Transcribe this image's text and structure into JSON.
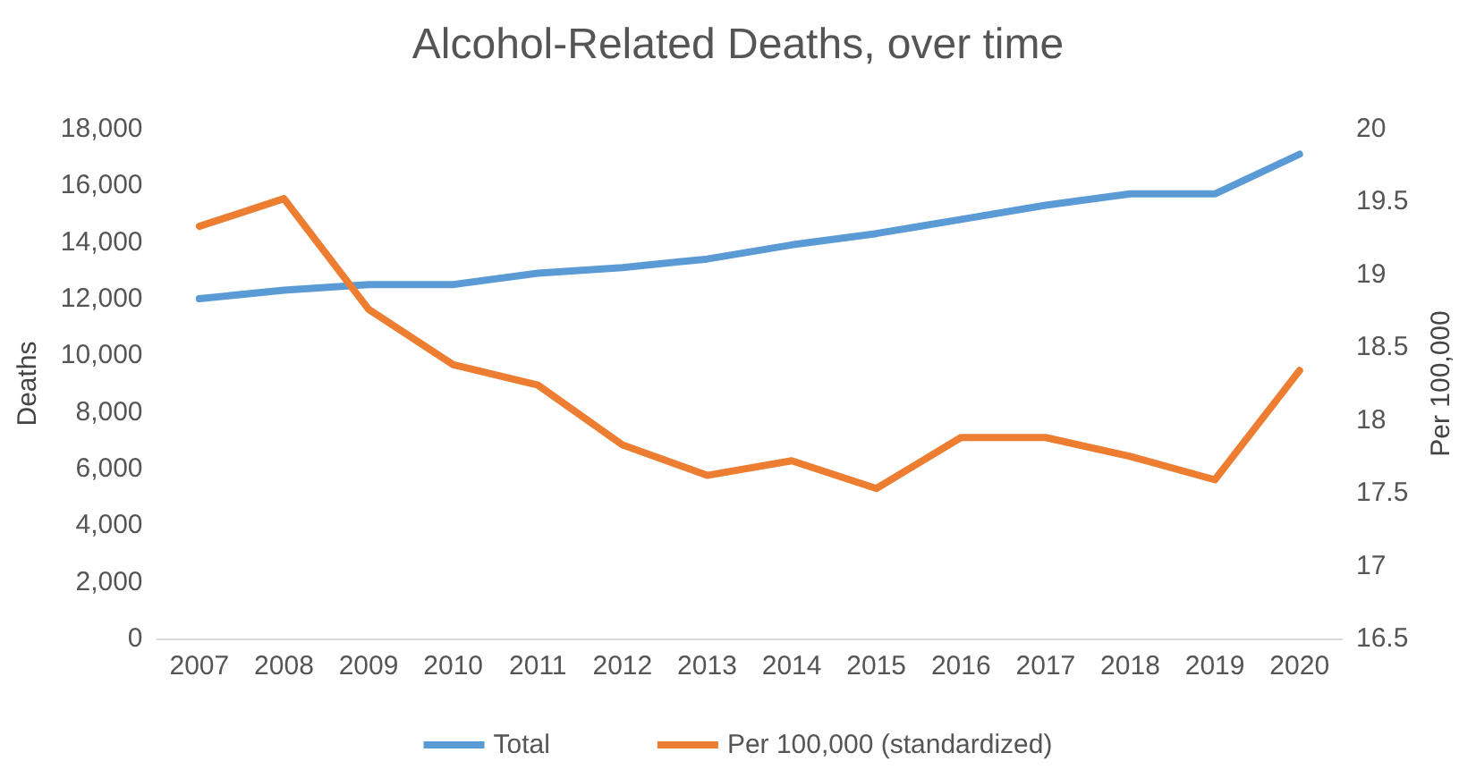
{
  "chart_data": {
    "type": "line",
    "title": "Alcohol-Related Deaths, over time",
    "ylabel": "Deaths",
    "y2label": "Per 100,000",
    "categories": [
      "2007",
      "2008",
      "2009",
      "2010",
      "2011",
      "2012",
      "2013",
      "2014",
      "2015",
      "2016",
      "2017",
      "2018",
      "2019",
      "2020"
    ],
    "series": [
      {
        "name": "Total",
        "color": "#5b9bd5",
        "values": [
          12000,
          12300,
          12500,
          12500,
          12900,
          13100,
          13400,
          13900,
          14300,
          14800,
          15300,
          15700,
          15700,
          17100
        ]
      },
      {
        "name": "Per 100,000 (standardized)",
        "color": "#ed7d31",
        "axis": "y2",
        "values": [
          19.33,
          19.52,
          18.76,
          18.38,
          18.24,
          17.83,
          17.62,
          17.72,
          17.53,
          17.88,
          17.88,
          17.75,
          17.59,
          18.34
        ]
      }
    ],
    "ylim": [
      0,
      18000
    ],
    "yticks": [
      0,
      {
        "value": 2000,
        "label": "2,000"
      },
      {
        "value": 4000,
        "label": "4,000"
      },
      {
        "value": 6000,
        "label": "6,000"
      },
      {
        "value": 8000,
        "label": "8,000"
      },
      {
        "value": 10000,
        "label": "10,000"
      },
      {
        "value": 12000,
        "label": "12,000"
      },
      {
        "value": 14000,
        "label": "14,000"
      },
      {
        "value": 16000,
        "label": "16,000"
      },
      {
        "value": 18000,
        "label": "18,000"
      }
    ],
    "y2lim": [
      16.5,
      20
    ],
    "y2ticks": [
      16.5,
      17,
      17.5,
      18,
      18.5,
      19,
      19.5,
      20
    ],
    "grid": false,
    "legend": "bottom",
    "marker": "none",
    "line_style": "solid"
  }
}
